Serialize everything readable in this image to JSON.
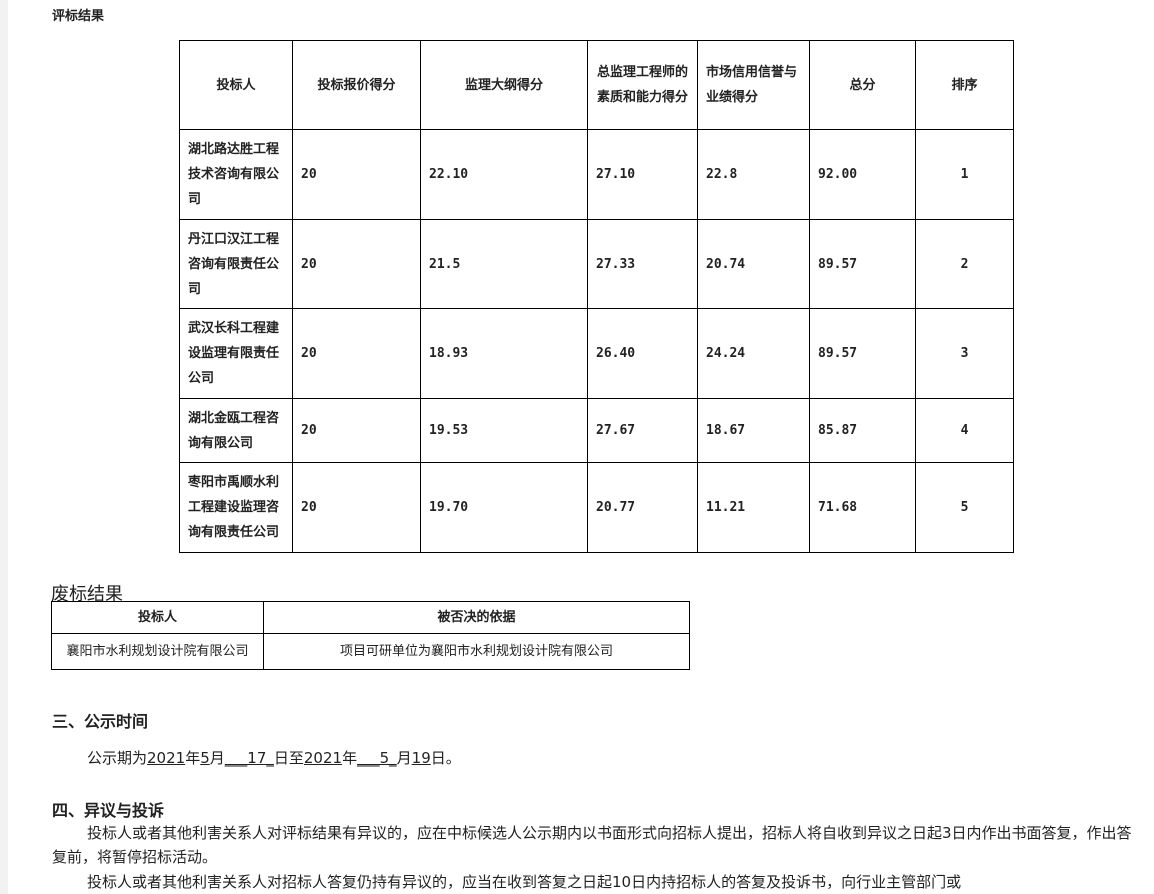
{
  "eval_title": "评标结果",
  "eval_table": {
    "headers": [
      "投标人",
      "投标报价得分",
      "监理大纲得分",
      "总监理工程师的素质和能力得分",
      "市场信用信誉与业绩得分",
      "总分",
      "排序"
    ],
    "rows": [
      [
        "湖北路达胜工程技术咨询有限公司",
        "20",
        "22.10",
        "27.10",
        "22.8",
        "92.00",
        "1"
      ],
      [
        "丹江口汉江工程咨询有限责任公司",
        "20",
        "21.5",
        "27.33",
        "20.74",
        "89.57",
        "2"
      ],
      [
        "武汉长科工程建设监理有限责任公司",
        "20",
        "18.93",
        "26.40",
        "24.24",
        "89.57",
        "3"
      ],
      [
        "湖北金瓯工程咨询有限公司",
        "20",
        "19.53",
        "27.67",
        "18.67",
        "85.87",
        "4"
      ],
      [
        "枣阳市禹顺水利工程建设监理咨询有限责任公司",
        "20",
        "19.70",
        "20.77",
        "11.21",
        "71.68",
        "5"
      ]
    ]
  },
  "reject_title": "废标结果",
  "reject_table": {
    "headers": [
      "投标人",
      "被否决的依据"
    ],
    "rows": [
      [
        "襄阳市水利规划设计院有限公司",
        "项目可研单位为襄阳市水利规划设计院有限公司"
      ]
    ]
  },
  "section3": {
    "title": "三、公示时间",
    "segments": [
      "公示期为",
      "2021",
      "年",
      "5",
      "月",
      "___17_",
      "日至",
      "2021",
      "年",
      "___5_",
      "月",
      "19",
      "日。"
    ]
  },
  "section4": {
    "title": "四、异议与投诉",
    "p1": "投标人或者其他利害关系人对评标结果有异议的，应在中标候选人公示期内以书面形式向招标人提出，招标人将自收到异议之日起3日内作出书面答复，作出答复前，将暂停招标活动。",
    "p2": "投标人或者其他利害关系人对招标人答复仍持有异议的，应当在收到答复之日起10日内持招标人的答复及投诉书，向行业主管部门或"
  }
}
